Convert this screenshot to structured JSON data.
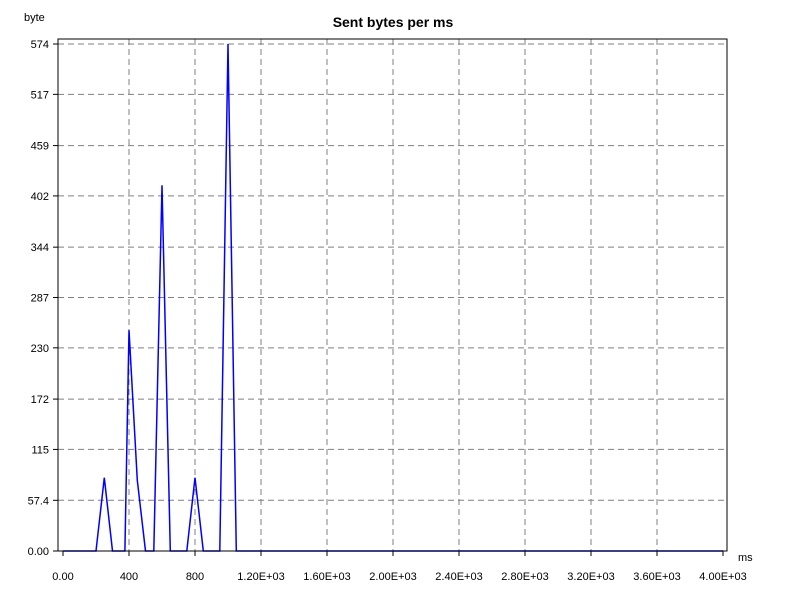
{
  "chart_data": {
    "type": "line",
    "title": "Sent bytes per ms",
    "ylabel": "byte",
    "xlabel": "ms",
    "xlim": [
      0,
      4000
    ],
    "ylim": [
      0,
      574
    ],
    "grid": true,
    "x_ticks": [
      {
        "value": 0,
        "label": "0.00"
      },
      {
        "value": 400,
        "label": "400"
      },
      {
        "value": 800,
        "label": "800"
      },
      {
        "value": 1200,
        "label": "1.20E+03"
      },
      {
        "value": 1600,
        "label": "1.60E+03"
      },
      {
        "value": 2000,
        "label": "2.00E+03"
      },
      {
        "value": 2400,
        "label": "2.40E+03"
      },
      {
        "value": 2800,
        "label": "2.80E+03"
      },
      {
        "value": 3200,
        "label": "3.20E+03"
      },
      {
        "value": 3600,
        "label": "3.60E+03"
      },
      {
        "value": 4000,
        "label": "4.00E+03"
      }
    ],
    "y_ticks": [
      {
        "value": 0,
        "label": "0.00"
      },
      {
        "value": 57.4,
        "label": "57.4"
      },
      {
        "value": 115,
        "label": "115"
      },
      {
        "value": 172,
        "label": "172"
      },
      {
        "value": 230,
        "label": "230"
      },
      {
        "value": 287,
        "label": "287"
      },
      {
        "value": 344,
        "label": "344"
      },
      {
        "value": 402,
        "label": "402"
      },
      {
        "value": 459,
        "label": "459"
      },
      {
        "value": 517,
        "label": "517"
      },
      {
        "value": 574,
        "label": "574"
      }
    ],
    "series": [
      {
        "color": "#0000ff",
        "x": [
          0,
          200,
          250,
          300,
          350,
          375,
          400,
          450,
          500,
          550,
          600,
          650,
          700,
          750,
          800,
          850,
          900,
          950,
          1000,
          1050,
          1100,
          1200,
          1600,
          2000,
          2400,
          2800,
          3200,
          3600,
          4000
        ],
        "y": [
          0,
          0,
          83,
          0,
          0,
          0,
          250,
          80,
          0,
          0,
          414,
          0,
          0,
          0,
          83,
          0,
          0,
          0,
          574,
          0,
          0,
          0,
          0,
          0,
          0,
          0,
          0,
          0,
          0
        ]
      }
    ]
  }
}
